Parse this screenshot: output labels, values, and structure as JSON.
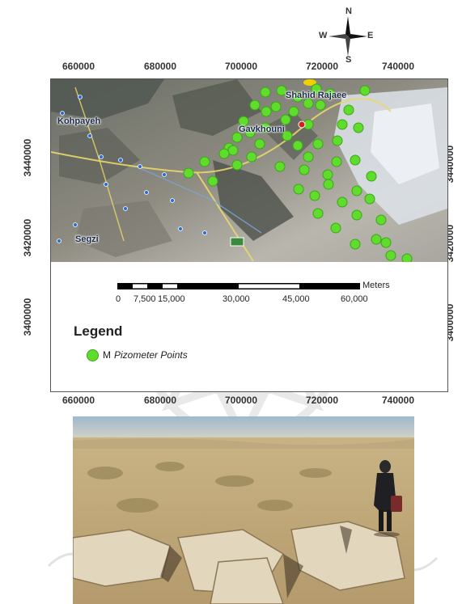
{
  "map": {
    "x_ticks": [
      "660000",
      "680000",
      "700000",
      "720000",
      "740000"
    ],
    "y_ticks": [
      "3440000",
      "3420000",
      "3400000"
    ],
    "north_arrow": {
      "n": "N",
      "s": "S",
      "e": "E",
      "w": "W"
    },
    "place_labels": [
      "Kohpayeh",
      "Segzi",
      "Shahid Rajaee",
      "Gavkhouni"
    ],
    "scale_bar": {
      "labels": [
        "0",
        "7,500",
        "15,000",
        "30,000",
        "45,000",
        "60,000"
      ],
      "unit": "Meters"
    },
    "legend": {
      "title": "Legend",
      "marker": "M",
      "item": "Pizometer Points",
      "marker_color": "#5fdc2c"
    },
    "piezometer_count": 62
  },
  "colors": {
    "piezometer_fill": "#5fdc2c",
    "piezometer_stroke": "#3ba51a",
    "road": "#e8d86a",
    "village_marker": "#2a6fd6"
  },
  "photo": {
    "subject": "dry cracked desert ground with person standing"
  }
}
